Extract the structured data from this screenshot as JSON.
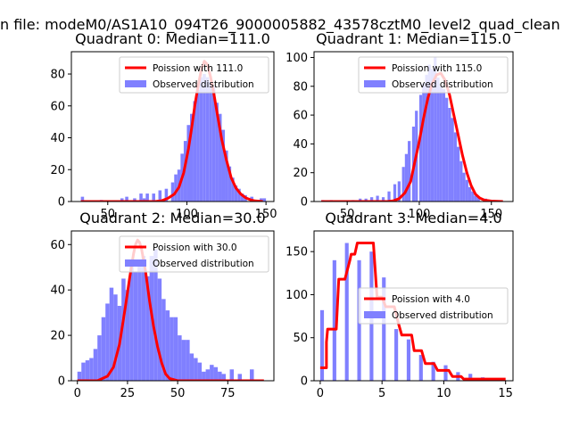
{
  "figure": {
    "suptitle": "n file: modeM0/AS1A10_094T26_9000005882_43578cztM0_level2_quad_clean"
  },
  "colors": {
    "hist": "#8080ff",
    "curve": "#ff0000",
    "axes": "#000000"
  },
  "chart_data": [
    {
      "type": "bar",
      "title": "Quadrant 0: Median=111.0",
      "xlim": [
        27,
        155
      ],
      "ylim": [
        0,
        94
      ],
      "xticks": [
        50,
        100,
        150
      ],
      "yticks": [
        0,
        20,
        40,
        60,
        80
      ],
      "legend_position": "top-right",
      "legend": [
        "Poission with 111.0",
        "Observed distribution"
      ],
      "bins": [
        [
          33,
          35,
          3
        ],
        [
          45,
          47,
          1
        ],
        [
          58,
          60,
          2
        ],
        [
          61,
          63,
          3
        ],
        [
          66,
          68,
          2
        ],
        [
          70,
          72,
          5
        ],
        [
          72,
          74,
          2
        ],
        [
          74,
          76,
          5
        ],
        [
          78,
          80,
          5
        ],
        [
          82,
          84,
          7
        ],
        [
          86,
          88,
          8
        ],
        [
          90,
          92,
          12
        ],
        [
          92,
          94,
          17
        ],
        [
          94,
          96,
          20
        ],
        [
          96,
          98,
          30
        ],
        [
          98,
          100,
          38
        ],
        [
          100,
          102,
          48
        ],
        [
          102,
          104,
          55
        ],
        [
          104,
          106,
          63
        ],
        [
          106,
          108,
          70
        ],
        [
          108,
          110,
          78
        ],
        [
          110,
          112,
          80
        ],
        [
          112,
          114,
          78
        ],
        [
          114,
          116,
          75
        ],
        [
          116,
          118,
          72
        ],
        [
          118,
          120,
          62
        ],
        [
          120,
          122,
          55
        ],
        [
          122,
          124,
          45
        ],
        [
          124,
          126,
          32
        ],
        [
          126,
          128,
          22
        ],
        [
          128,
          130,
          15
        ],
        [
          130,
          132,
          10
        ],
        [
          132,
          134,
          8
        ],
        [
          134,
          136,
          5
        ],
        [
          136,
          138,
          4
        ],
        [
          140,
          142,
          3
        ],
        [
          146,
          148,
          2
        ],
        [
          148,
          150,
          2
        ]
      ],
      "curve": [
        [
          33,
          0
        ],
        [
          80,
          0
        ],
        [
          84,
          0.5
        ],
        [
          88,
          2
        ],
        [
          92,
          4.6
        ],
        [
          95,
          9
        ],
        [
          98,
          18
        ],
        [
          101,
          33
        ],
        [
          103,
          46
        ],
        [
          105,
          60
        ],
        [
          107,
          72
        ],
        [
          109,
          82
        ],
        [
          111,
          88
        ],
        [
          113,
          86
        ],
        [
          115,
          78
        ],
        [
          117,
          68
        ],
        [
          119,
          56
        ],
        [
          122,
          39
        ],
        [
          125,
          26
        ],
        [
          128,
          15
        ],
        [
          131,
          8.5
        ],
        [
          134,
          4.7
        ],
        [
          137,
          2.4
        ],
        [
          140,
          1.2
        ],
        [
          143,
          0.4
        ],
        [
          148,
          0
        ]
      ]
    },
    {
      "type": "bar",
      "title": "Quadrant 1: Median=115.0",
      "xlim": [
        27,
        165
      ],
      "ylim": [
        0,
        104
      ],
      "xticks": [
        50,
        100,
        150
      ],
      "yticks": [
        0,
        20,
        40,
        60,
        80,
        100
      ],
      "legend_position": "top-right",
      "legend": [
        "Poission with 115.0",
        "Observed distribution"
      ],
      "bins": [
        [
          32,
          34,
          1
        ],
        [
          38,
          40,
          1
        ],
        [
          53,
          55,
          1
        ],
        [
          58,
          60,
          2
        ],
        [
          62,
          64,
          2
        ],
        [
          66,
          68,
          3
        ],
        [
          70,
          72,
          4
        ],
        [
          74,
          76,
          3
        ],
        [
          78,
          80,
          7
        ],
        [
          82,
          84,
          12
        ],
        [
          85,
          87,
          14
        ],
        [
          88,
          90,
          24
        ],
        [
          90,
          92,
          33
        ],
        [
          92,
          94,
          42
        ],
        [
          95,
          97,
          52
        ],
        [
          97,
          99,
          63
        ],
        [
          100,
          102,
          74
        ],
        [
          102,
          104,
          82
        ],
        [
          104,
          106,
          88
        ],
        [
          106,
          108,
          95
        ],
        [
          108,
          110,
          92
        ],
        [
          110,
          112,
          100
        ],
        [
          112,
          114,
          86
        ],
        [
          114,
          116,
          80
        ],
        [
          116,
          118,
          78
        ],
        [
          118,
          120,
          72
        ],
        [
          120,
          122,
          65
        ],
        [
          122,
          124,
          58
        ],
        [
          124,
          126,
          48
        ],
        [
          126,
          128,
          38
        ],
        [
          128,
          130,
          28
        ],
        [
          130,
          132,
          20
        ],
        [
          132,
          134,
          15
        ],
        [
          134,
          136,
          10
        ],
        [
          136,
          138,
          7
        ],
        [
          138,
          140,
          4
        ],
        [
          140,
          142,
          3
        ],
        [
          145,
          147,
          2
        ],
        [
          150,
          152,
          1
        ]
      ],
      "curve": [
        [
          32,
          0
        ],
        [
          78,
          0
        ],
        [
          82,
          0.5
        ],
        [
          86,
          2
        ],
        [
          90,
          6
        ],
        [
          94,
          14
        ],
        [
          97,
          28
        ],
        [
          100,
          42
        ],
        [
          103,
          58
        ],
        [
          106,
          72
        ],
        [
          109,
          82
        ],
        [
          112,
          88
        ],
        [
          115,
          89
        ],
        [
          118,
          84
        ],
        [
          121,
          74
        ],
        [
          124,
          60
        ],
        [
          127,
          46
        ],
        [
          130,
          32
        ],
        [
          133,
          20
        ],
        [
          136,
          11
        ],
        [
          139,
          5
        ],
        [
          142,
          2.4
        ],
        [
          145,
          1
        ],
        [
          150,
          0.3
        ],
        [
          158,
          0
        ]
      ]
    },
    {
      "type": "bar",
      "title": "Quadrant 2: Median=30.0",
      "xlim": [
        -3,
        98
      ],
      "ylim": [
        0,
        66
      ],
      "xticks": [
        0,
        25,
        50,
        75
      ],
      "yticks": [
        0,
        20,
        40,
        60
      ],
      "legend_position": "top-right",
      "legend": [
        "Poission with 30.0",
        "Observed distribution"
      ],
      "bins": [
        [
          0,
          2,
          4
        ],
        [
          2,
          4,
          8
        ],
        [
          4,
          6,
          9
        ],
        [
          6,
          8,
          10
        ],
        [
          8,
          10,
          14
        ],
        [
          10,
          12,
          20
        ],
        [
          12,
          14,
          28
        ],
        [
          14,
          16,
          34
        ],
        [
          16,
          18,
          41
        ],
        [
          18,
          20,
          38
        ],
        [
          20,
          22,
          33
        ],
        [
          22,
          24,
          45
        ],
        [
          24,
          26,
          40
        ],
        [
          26,
          28,
          52
        ],
        [
          28,
          30,
          48
        ],
        [
          30,
          32,
          53
        ],
        [
          32,
          34,
          55
        ],
        [
          34,
          36,
          46
        ],
        [
          36,
          38,
          55
        ],
        [
          38,
          40,
          58
        ],
        [
          40,
          42,
          45
        ],
        [
          42,
          44,
          36
        ],
        [
          44,
          46,
          31
        ],
        [
          46,
          48,
          28
        ],
        [
          48,
          50,
          28
        ],
        [
          50,
          52,
          20
        ],
        [
          52,
          54,
          18
        ],
        [
          54,
          56,
          18
        ],
        [
          56,
          58,
          12
        ],
        [
          58,
          60,
          10
        ],
        [
          60,
          62,
          8
        ],
        [
          62,
          64,
          4
        ],
        [
          64,
          66,
          5
        ],
        [
          66,
          68,
          7
        ],
        [
          68,
          70,
          6
        ],
        [
          70,
          72,
          4
        ],
        [
          72,
          74,
          3
        ],
        [
          76,
          78,
          5
        ],
        [
          80,
          82,
          3
        ],
        [
          86,
          88,
          5
        ]
      ],
      "curve": [
        [
          0,
          0
        ],
        [
          10,
          0
        ],
        [
          15,
          2
        ],
        [
          18,
          6
        ],
        [
          21,
          16
        ],
        [
          24,
          33
        ],
        [
          26,
          45
        ],
        [
          28,
          56
        ],
        [
          29,
          60
        ],
        [
          30,
          62
        ],
        [
          31,
          61
        ],
        [
          32,
          58
        ],
        [
          34,
          48
        ],
        [
          36,
          35
        ],
        [
          38,
          24
        ],
        [
          40,
          15
        ],
        [
          42,
          8
        ],
        [
          44,
          3
        ],
        [
          46,
          1
        ],
        [
          50,
          0
        ],
        [
          93,
          0
        ]
      ]
    },
    {
      "type": "bar",
      "title": "Quadrant 3: Median=4.0",
      "xlim": [
        -0.5,
        15.6
      ],
      "ylim": [
        0,
        174
      ],
      "xticks": [
        0,
        5,
        10,
        15
      ],
      "yticks": [
        0,
        50,
        100,
        150
      ],
      "legend_position": "center-right",
      "legend": [
        "Poission with 4.0",
        "Observed distribution"
      ],
      "bins": [
        [
          0,
          0.3,
          82
        ],
        [
          1,
          1.3,
          140
        ],
        [
          2,
          2.3,
          160
        ],
        [
          3,
          3.3,
          140
        ],
        [
          4,
          4.3,
          150
        ],
        [
          5,
          5.3,
          120
        ],
        [
          6,
          6.3,
          60
        ],
        [
          7,
          7.3,
          48
        ],
        [
          8,
          8.3,
          30
        ],
        [
          9,
          9.3,
          22
        ],
        [
          10,
          10.3,
          18
        ],
        [
          11,
          11.3,
          10
        ],
        [
          12,
          12.3,
          8
        ],
        [
          13,
          13.3,
          4
        ],
        [
          14,
          14.3,
          3
        ]
      ],
      "curve": [
        [
          0,
          15
        ],
        [
          0.5,
          15
        ],
        [
          0.5,
          45
        ],
        [
          0.6,
          60
        ],
        [
          1.3,
          60
        ],
        [
          1.5,
          118
        ],
        [
          2,
          118
        ],
        [
          2.4,
          140
        ],
        [
          2.5,
          147
        ],
        [
          2.8,
          147
        ],
        [
          3,
          160
        ],
        [
          4.3,
          160
        ],
        [
          4.6,
          97
        ],
        [
          5,
          97
        ],
        [
          5.3,
          86
        ],
        [
          6,
          86
        ],
        [
          6.3,
          68
        ],
        [
          6.6,
          53
        ],
        [
          7.4,
          53
        ],
        [
          7.6,
          35
        ],
        [
          8.2,
          35
        ],
        [
          8.5,
          20
        ],
        [
          9.2,
          20
        ],
        [
          9.5,
          12
        ],
        [
          10.4,
          12
        ],
        [
          10.7,
          5
        ],
        [
          11.4,
          5
        ],
        [
          11.6,
          2
        ],
        [
          15,
          2
        ]
      ]
    }
  ]
}
